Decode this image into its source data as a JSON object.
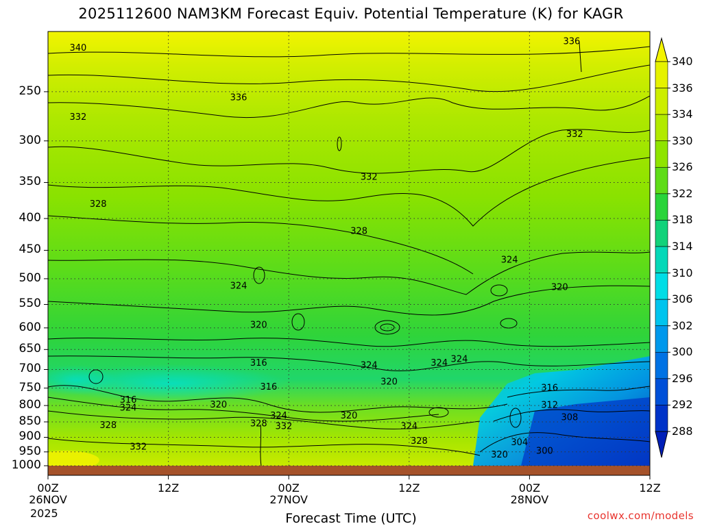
{
  "title": "2025112600 NAM3KM Forecast Equiv. Potential Temperature (K) for KAGR",
  "x_axis_title": "Forecast Time (UTC)",
  "credit": "coolwx.com/models",
  "year_label": "2025",
  "chart_data": {
    "type": "heatmap",
    "title": "2025112600 NAM3KM Forecast Equiv. Potential Temperature (K) for KAGR",
    "xlabel": "Forecast Time (UTC)",
    "ylabel": "",
    "x_range_hours": [
      0,
      60
    ],
    "y_range_hpa": [
      200,
      1000
    ],
    "y_scale": "log-pressure",
    "y_ticks": [
      "250",
      "300",
      "350",
      "400",
      "450",
      "500",
      "550",
      "600",
      "650",
      "700",
      "750",
      "800",
      "850",
      "900",
      "950",
      "1000"
    ],
    "x_ticks": [
      {
        "hour": 0,
        "lines": [
          "00Z",
          "26NOV"
        ]
      },
      {
        "hour": 12,
        "lines": [
          "12Z"
        ]
      },
      {
        "hour": 24,
        "lines": [
          "00Z",
          "27NOV"
        ]
      },
      {
        "hour": 36,
        "lines": [
          "12Z"
        ]
      },
      {
        "hour": 48,
        "lines": [
          "00Z",
          "28NOV"
        ]
      },
      {
        "hour": 60,
        "lines": [
          "12Z"
        ]
      }
    ],
    "grid": true,
    "colorbar": {
      "location": "right",
      "labels": [
        "340",
        "336",
        "334",
        "330",
        "326",
        "322",
        "318",
        "314",
        "310",
        "306",
        "302",
        "300",
        "296",
        "292",
        "288"
      ],
      "colors": [
        "#f4f400",
        "#e6f200",
        "#cdee00",
        "#b2ea00",
        "#8fe400",
        "#5fdc18",
        "#2ad43a",
        "#12d27a",
        "#05d8b8",
        "#00dde6",
        "#00c4ee",
        "#0098ec",
        "#0072e4",
        "#0050d8",
        "#0033c8",
        "#001fb8"
      ]
    },
    "contour_labels": [
      {
        "text": "340",
        "hour": 3.0,
        "p": 212
      },
      {
        "text": "336",
        "hour": 52.2,
        "p": 207
      },
      {
        "text": "336",
        "hour": 19.0,
        "p": 255
      },
      {
        "text": "332",
        "hour": 3.0,
        "p": 274
      },
      {
        "text": "332",
        "hour": 52.5,
        "p": 292
      },
      {
        "text": "332",
        "hour": 32.0,
        "p": 342
      },
      {
        "text": "328",
        "hour": 5.0,
        "p": 378
      },
      {
        "text": "328",
        "hour": 31.0,
        "p": 418
      },
      {
        "text": "324",
        "hour": 46.0,
        "p": 465
      },
      {
        "text": "324",
        "hour": 19.0,
        "p": 512
      },
      {
        "text": "320",
        "hour": 51.0,
        "p": 515
      },
      {
        "text": "320",
        "hour": 21.0,
        "p": 592
      },
      {
        "text": "316",
        "hour": 21.0,
        "p": 682
      },
      {
        "text": "324",
        "hour": 32.0,
        "p": 688
      },
      {
        "text": "324",
        "hour": 39.0,
        "p": 682
      },
      {
        "text": "324",
        "hour": 41.0,
        "p": 672
      },
      {
        "text": "320",
        "hour": 34.0,
        "p": 731
      },
      {
        "text": "316",
        "hour": 22.0,
        "p": 745
      },
      {
        "text": "316",
        "hour": 50.0,
        "p": 748
      },
      {
        "text": "316",
        "hour": 8.0,
        "p": 782
      },
      {
        "text": "324",
        "hour": 8.0,
        "p": 805
      },
      {
        "text": "320",
        "hour": 17.0,
        "p": 796
      },
      {
        "text": "320",
        "hour": 30.0,
        "p": 829
      },
      {
        "text": "312",
        "hour": 50.0,
        "p": 797
      },
      {
        "text": "324",
        "hour": 23.0,
        "p": 829
      },
      {
        "text": "328",
        "hour": 21.0,
        "p": 853
      },
      {
        "text": "332",
        "hour": 23.5,
        "p": 862
      },
      {
        "text": "328",
        "hour": 6.0,
        "p": 859
      },
      {
        "text": "308",
        "hour": 52.0,
        "p": 834
      },
      {
        "text": "324",
        "hour": 36.0,
        "p": 862
      },
      {
        "text": "328",
        "hour": 37.0,
        "p": 910
      },
      {
        "text": "304",
        "hour": 47.0,
        "p": 915
      },
      {
        "text": "332",
        "hour": 9.0,
        "p": 930
      },
      {
        "text": "300",
        "hour": 49.5,
        "p": 945
      },
      {
        "text": "320",
        "hour": 45.0,
        "p": 958
      }
    ]
  }
}
